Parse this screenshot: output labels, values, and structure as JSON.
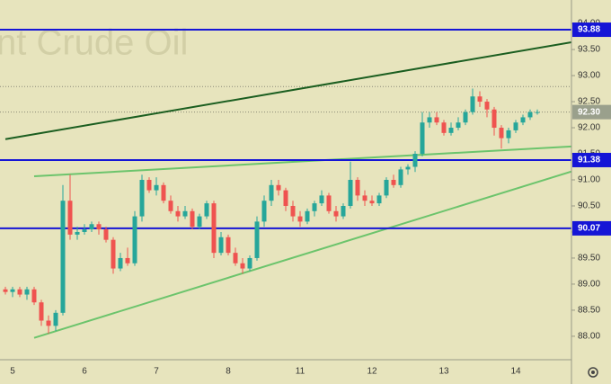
{
  "chart_data": {
    "type": "candlestick",
    "watermark": "nt Crude Oil",
    "categories": [
      null,
      "5",
      null,
      null,
      null,
      null,
      null,
      null,
      null,
      null,
      null,
      "6",
      null,
      null,
      null,
      null,
      null,
      null,
      null,
      null,
      null,
      "7",
      null,
      null,
      null,
      null,
      null,
      null,
      null,
      null,
      null,
      "8",
      null,
      null,
      null,
      null,
      null,
      null,
      null,
      null,
      null,
      "11",
      null,
      null,
      null,
      null,
      null,
      null,
      null,
      null,
      null,
      "12",
      null,
      null,
      null,
      null,
      null,
      null,
      null,
      null,
      null,
      "13",
      null,
      null,
      null,
      null,
      null,
      null,
      null,
      null,
      null,
      "14",
      null,
      null,
      null
    ],
    "ohlc": [
      [
        88.9,
        88.95,
        88.8,
        88.85
      ],
      [
        88.85,
        88.95,
        88.75,
        88.9
      ],
      [
        88.9,
        88.95,
        88.75,
        88.8
      ],
      [
        88.8,
        88.95,
        88.7,
        88.9
      ],
      [
        88.9,
        88.95,
        88.6,
        88.65
      ],
      [
        88.65,
        88.7,
        88.2,
        88.3
      ],
      [
        88.3,
        88.4,
        88.05,
        88.2
      ],
      [
        88.2,
        88.5,
        88.1,
        88.45
      ],
      [
        88.45,
        90.9,
        88.4,
        90.6
      ],
      [
        90.6,
        91.1,
        89.85,
        89.95
      ],
      [
        89.95,
        90.1,
        89.85,
        90.0
      ],
      [
        90.0,
        90.15,
        89.95,
        90.05
      ],
      [
        90.05,
        90.2,
        90.0,
        90.15
      ],
      [
        90.15,
        90.2,
        89.95,
        90.05
      ],
      [
        90.05,
        90.1,
        89.8,
        89.85
      ],
      [
        89.85,
        89.9,
        89.2,
        89.3
      ],
      [
        89.3,
        89.6,
        89.25,
        89.5
      ],
      [
        89.5,
        89.7,
        89.35,
        89.4
      ],
      [
        89.4,
        90.4,
        89.35,
        90.3
      ],
      [
        90.3,
        91.1,
        90.2,
        91.0
      ],
      [
        91.0,
        91.05,
        90.75,
        90.8
      ],
      [
        90.8,
        91.05,
        90.7,
        90.9
      ],
      [
        90.9,
        90.95,
        90.55,
        90.6
      ],
      [
        90.6,
        90.7,
        90.35,
        90.4
      ],
      [
        90.4,
        90.5,
        90.2,
        90.3
      ],
      [
        90.3,
        90.5,
        90.25,
        90.4
      ],
      [
        90.4,
        90.45,
        90.05,
        90.1
      ],
      [
        90.1,
        90.35,
        90.05,
        90.3
      ],
      [
        90.3,
        90.6,
        90.25,
        90.55
      ],
      [
        90.55,
        90.6,
        89.5,
        89.6
      ],
      [
        89.6,
        90.0,
        89.55,
        89.9
      ],
      [
        89.9,
        89.95,
        89.55,
        89.6
      ],
      [
        89.6,
        89.7,
        89.35,
        89.4
      ],
      [
        89.4,
        89.5,
        89.2,
        89.3
      ],
      [
        89.3,
        89.55,
        89.25,
        89.5
      ],
      [
        89.5,
        90.3,
        89.45,
        90.2
      ],
      [
        90.2,
        90.7,
        90.1,
        90.6
      ],
      [
        90.6,
        91.0,
        90.5,
        90.9
      ],
      [
        90.9,
        91.0,
        90.7,
        90.8
      ],
      [
        90.8,
        90.85,
        90.4,
        90.5
      ],
      [
        90.5,
        90.6,
        90.2,
        90.3
      ],
      [
        90.3,
        90.4,
        90.1,
        90.2
      ],
      [
        90.2,
        90.45,
        90.15,
        90.4
      ],
      [
        90.4,
        90.6,
        90.3,
        90.55
      ],
      [
        90.55,
        90.8,
        90.5,
        90.7
      ],
      [
        90.7,
        90.75,
        90.35,
        90.4
      ],
      [
        90.4,
        90.5,
        90.2,
        90.3
      ],
      [
        90.3,
        90.55,
        90.25,
        90.5
      ],
      [
        90.5,
        91.35,
        90.45,
        91.0
      ],
      [
        91.0,
        91.05,
        90.6,
        90.7
      ],
      [
        90.7,
        90.8,
        90.5,
        90.6
      ],
      [
        90.6,
        90.7,
        90.5,
        90.55
      ],
      [
        90.55,
        90.75,
        90.5,
        90.7
      ],
      [
        90.7,
        91.05,
        90.65,
        91.0
      ],
      [
        91.0,
        91.1,
        90.85,
        90.9
      ],
      [
        90.9,
        91.25,
        90.85,
        91.2
      ],
      [
        91.2,
        91.3,
        91.1,
        91.25
      ],
      [
        91.25,
        91.55,
        91.15,
        91.5
      ],
      [
        91.5,
        92.3,
        91.45,
        92.1
      ],
      [
        92.1,
        92.3,
        92.0,
        92.2
      ],
      [
        92.2,
        92.3,
        92.05,
        92.1
      ],
      [
        92.1,
        92.15,
        91.85,
        91.9
      ],
      [
        91.9,
        92.1,
        91.85,
        92.0
      ],
      [
        92.0,
        92.2,
        91.95,
        92.1
      ],
      [
        92.1,
        92.35,
        92.05,
        92.3
      ],
      [
        92.3,
        92.75,
        92.25,
        92.6
      ],
      [
        92.6,
        92.7,
        92.4,
        92.5
      ],
      [
        92.5,
        92.55,
        92.2,
        92.35
      ],
      [
        92.35,
        92.4,
        91.85,
        92.0
      ],
      [
        92.0,
        92.05,
        91.6,
        91.8
      ],
      [
        91.8,
        92.0,
        91.7,
        91.95
      ],
      [
        91.95,
        92.15,
        91.9,
        92.1
      ],
      [
        92.1,
        92.25,
        92.05,
        92.2
      ],
      [
        92.2,
        92.35,
        92.15,
        92.3
      ],
      [
        92.3,
        92.35,
        92.25,
        92.3
      ]
    ],
    "up_color": "#26a69a",
    "down_color": "#ef5350",
    "ylim": [
      87.55,
      94.45
    ],
    "yticks": [
      {
        "value": 88,
        "label": "88.00"
      },
      {
        "value": 88.5,
        "label": "88.50"
      },
      {
        "value": 89,
        "label": "89.00"
      },
      {
        "value": 89.5,
        "label": "89.50"
      },
      {
        "value": 90,
        "label": "90.00"
      },
      {
        "value": 90.5,
        "label": "90.50"
      },
      {
        "value": 91,
        "label": "91.00"
      },
      {
        "value": 91.5,
        "label": "91.50"
      },
      {
        "value": 92,
        "label": "92.00"
      },
      {
        "value": 92.5,
        "label": "92.50"
      },
      {
        "value": 93,
        "label": "93.00"
      },
      {
        "value": 93.5,
        "label": "93.50"
      },
      {
        "value": 94,
        "label": "94.00"
      }
    ],
    "levels": [
      93.88,
      91.38,
      90.07
    ],
    "level_color": "#1515d6",
    "last_price": {
      "value": 92.3,
      "label": "92.30"
    },
    "high_line": 92.79,
    "trend_lines": [
      {
        "color": "#1b5e20",
        "start": 0,
        "values": [
          91.78,
          93.64
        ]
      },
      {
        "color": "#6cc46c",
        "start": 4,
        "values": [
          91.07,
          91.64
        ]
      },
      {
        "color": "#6cc46c",
        "start": 4,
        "values": [
          87.97,
          91.16
        ]
      }
    ]
  }
}
